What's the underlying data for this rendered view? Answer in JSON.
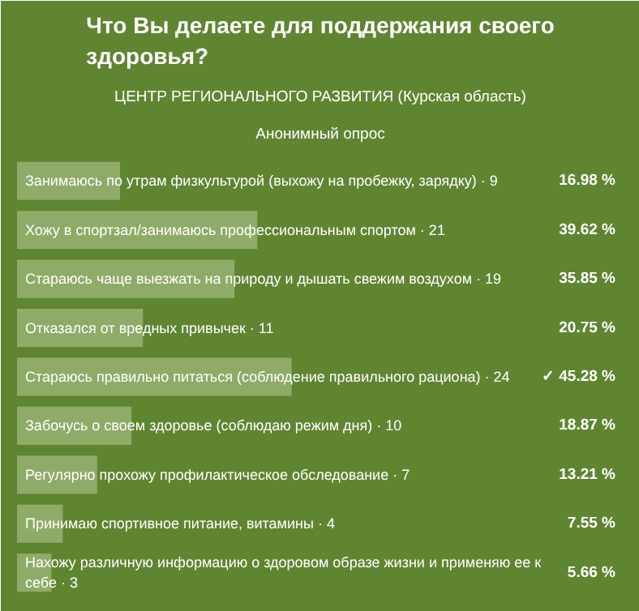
{
  "chart_data": {
    "type": "bar",
    "orientation": "horizontal",
    "title": "Что Вы делаете для поддержания своего здоровья?",
    "subtitle": "ЦЕНТР РЕГИОНАЛЬНОГО РАЗВИТИЯ (Курская область)",
    "annotations": [
      "Анонимный опрос"
    ],
    "categories": [
      "Занимаюсь по утрам физкультурой (выхожу на пробежку, зарядку) · 9",
      "Хожу в спортзал/занимаюсь профессиональным спортом · 21",
      "Стараюсь чаще выезжать на природу и дышать свежим воздухом · 19",
      "Отказался от вредных привычек · 11",
      "Стараюсь правильно питаться (соблюдение правильного рациона) · 24",
      "Забочусь о своем здоровье (соблюдаю режим дня) · 10",
      "Регулярно прохожу профилактическое обследование · 7",
      "Принимаю спортивное питание, витамины · 4",
      "Нахожу различную информацию о здоровом образе жизни и применяю ее к себе · 3"
    ],
    "values": [
      16.98,
      39.62,
      35.85,
      20.75,
      45.28,
      18.87,
      13.21,
      7.55,
      5.66
    ],
    "value_labels": [
      "16.98 %",
      "39.62 %",
      "35.85 %",
      "20.75 %",
      "✓ 45.28 %",
      "18.87 %",
      "13.21 %",
      "7.55 %",
      "5.66 %"
    ],
    "color": "#8fab68",
    "xlim": [
      0,
      100
    ],
    "tick_labels": false,
    "grid": false
  }
}
